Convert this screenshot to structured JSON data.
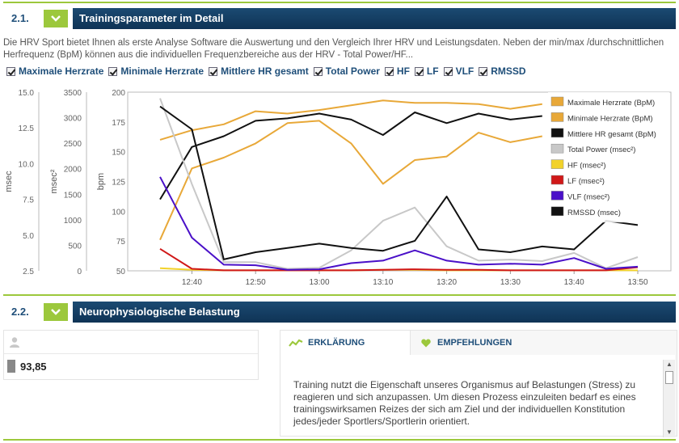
{
  "section1": {
    "number": "2.1.",
    "title": "Trainingsparameter im Detail",
    "intro": "Die HRV Sport bietet Ihnen als erste Analyse Software die Auswertung und den Vergleich Ihrer HRV und Leistungsdaten. Neben der min/max /durchschnittlichen Herfrequenz (BpM) können aus die individuellen Frequenzbereiche aus der HRV - Total Power/HF...",
    "checkboxes": [
      {
        "label": "Maximale Herzrate",
        "checked": true
      },
      {
        "label": "Minimale Herzrate",
        "checked": true
      },
      {
        "label": "Mittlere HR gesamt",
        "checked": true
      },
      {
        "label": "Total Power",
        "checked": true
      },
      {
        "label": "HF",
        "checked": true
      },
      {
        "label": "LF",
        "checked": true
      },
      {
        "label": "VLF",
        "checked": true
      },
      {
        "label": "RMSSD",
        "checked": true
      }
    ]
  },
  "chart_data": {
    "type": "line",
    "x": [
      "12:35",
      "12:40",
      "12:45",
      "12:50",
      "12:55",
      "13:00",
      "13:05",
      "13:10",
      "13:15",
      "13:20",
      "13:25",
      "13:30",
      "13:35",
      "13:40",
      "13:45",
      "13:50"
    ],
    "x_ticks": [
      "12:40",
      "12:50",
      "13:00",
      "13:10",
      "13:20",
      "13:30",
      "13:40",
      "13:50"
    ],
    "axes": {
      "msec": {
        "label": "msec",
        "ticks": [
          "15.0",
          "12.5",
          "10.0",
          "7.5",
          "5.0",
          "2.5"
        ],
        "range": [
          2.5,
          15.0
        ]
      },
      "msec2": {
        "label": "msec²",
        "ticks": [
          "3500",
          "3000",
          "2500",
          "2000",
          "1500",
          "1000",
          "500",
          "0"
        ],
        "range": [
          0,
          3500
        ]
      },
      "bpm": {
        "label": "bpm",
        "ticks": [
          "200",
          "175",
          "150",
          "125",
          "100",
          "75",
          "50"
        ],
        "range": [
          50,
          200
        ]
      }
    },
    "series": [
      {
        "name": "Maximale Herzrate (BpM)",
        "color": "#e8a838",
        "axis": "bpm",
        "values": [
          160,
          168,
          173,
          184,
          182,
          185,
          189,
          193,
          191,
          191,
          190,
          186,
          190,
          null,
          null,
          null
        ]
      },
      {
        "name": "Minimale Herzrate (BpM)",
        "color": "#e8a838",
        "axis": "bpm",
        "values": [
          76,
          136,
          145,
          157,
          174,
          176,
          157,
          123,
          143,
          146,
          166,
          158,
          163,
          null,
          null,
          null
        ]
      },
      {
        "name": "Mittlere HR gesamt (BpM)",
        "color": "#111111",
        "axis": "bpm",
        "values": [
          110,
          154,
          163,
          176,
          178,
          182,
          177,
          164,
          183,
          174,
          182,
          177,
          180,
          null,
          null,
          null
        ]
      },
      {
        "name": "Total Power (msec²)",
        "color": "#c8c8c8",
        "axis": "msec2",
        "values": [
          3380,
          1700,
          170,
          170,
          40,
          60,
          400,
          980,
          1240,
          480,
          200,
          220,
          190,
          350,
          50,
          270
        ]
      },
      {
        "name": "HF (msec²)",
        "color": "#f2d22a",
        "axis": "msec2",
        "values": [
          50,
          20,
          10,
          10,
          10,
          10,
          10,
          20,
          20,
          10,
          10,
          10,
          10,
          10,
          10,
          10
        ]
      },
      {
        "name": "LF (msec²)",
        "color": "#d01818",
        "axis": "msec2",
        "values": [
          430,
          40,
          10,
          10,
          10,
          10,
          10,
          20,
          30,
          20,
          20,
          10,
          10,
          10,
          10,
          70
        ]
      },
      {
        "name": "VLF (msec²)",
        "color": "#4a10c8",
        "axis": "msec2",
        "values": [
          1840,
          650,
          120,
          110,
          20,
          30,
          150,
          200,
          400,
          200,
          120,
          140,
          120,
          250,
          40,
          80
        ]
      },
      {
        "name": "RMSSD (msec)",
        "color": "#111111",
        "axis": "msec",
        "values": [
          14.0,
          12.4,
          3.3,
          3.8,
          4.1,
          4.4,
          4.1,
          3.9,
          4.6,
          7.7,
          4.0,
          3.8,
          4.2,
          4.0,
          6.0,
          5.7
        ]
      }
    ],
    "legend_position": "top-right",
    "grid": false
  },
  "section2": {
    "number": "2.2.",
    "title": "Neurophysiologische Belastung",
    "value": "93,85",
    "tabs": [
      {
        "label": "ERKLÄRUNG",
        "icon": "trend-icon",
        "active": true
      },
      {
        "label": "EMPFEHLUNGEN",
        "icon": "heart-icon",
        "active": false
      }
    ],
    "text": "Training nutzt die Eigenschaft unseres Organismus auf Belastungen (Stress) zu reagieren und sich anzupassen. Um diesen Prozess einzuleiten bedarf es eines trainingswirksamen Reizes der sich am Ziel und der individuellen Konstitution jedes/jeder Sportlers/Sportlerin orientiert."
  },
  "colors": {
    "accent": "#9cc83c",
    "header": "#143e63",
    "link": "#1e4e79"
  }
}
